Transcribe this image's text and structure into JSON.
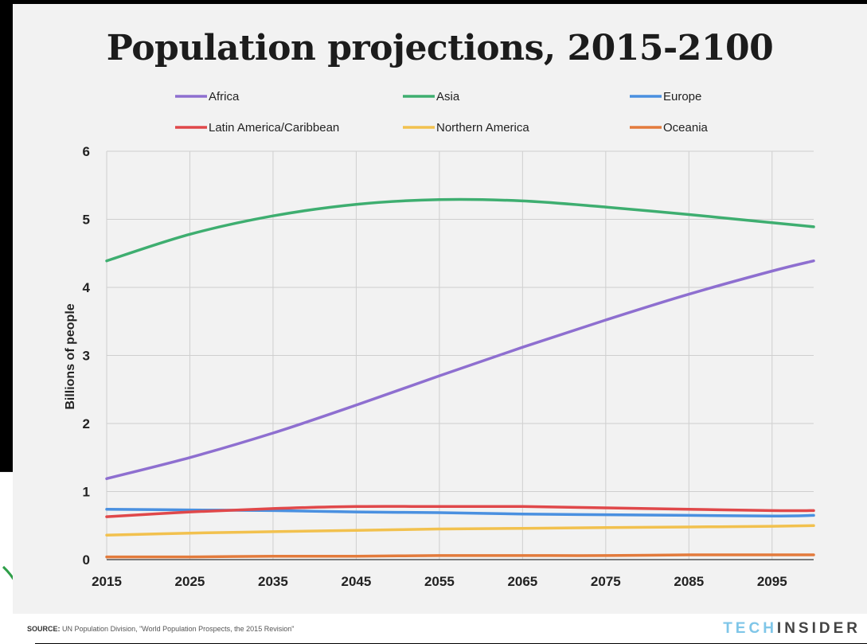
{
  "chart_data": {
    "type": "line",
    "title": "Population projections, 2015-2100",
    "xlabel": "",
    "ylabel": "Billions of people",
    "xlim": [
      2015,
      2100
    ],
    "ylim": [
      0,
      6
    ],
    "x_ticks": [
      2015,
      2025,
      2035,
      2045,
      2055,
      2065,
      2075,
      2085,
      2095
    ],
    "y_ticks": [
      0,
      1,
      2,
      3,
      4,
      5,
      6
    ],
    "grid": true,
    "legend_position": "top",
    "x": [
      2015,
      2025,
      2035,
      2045,
      2055,
      2065,
      2075,
      2085,
      2095,
      2100
    ],
    "series": [
      {
        "name": "Africa",
        "color": "#8e6fd0",
        "values": [
          1.19,
          1.5,
          1.86,
          2.27,
          2.7,
          3.12,
          3.52,
          3.9,
          4.24,
          4.39
        ]
      },
      {
        "name": "Asia",
        "color": "#3eae70",
        "values": [
          4.39,
          4.78,
          5.05,
          5.22,
          5.29,
          5.27,
          5.18,
          5.07,
          4.95,
          4.89
        ]
      },
      {
        "name": "Europe",
        "color": "#4a90e0",
        "values": [
          0.74,
          0.73,
          0.72,
          0.7,
          0.69,
          0.67,
          0.66,
          0.65,
          0.64,
          0.65
        ]
      },
      {
        "name": "Latin America/Caribbean",
        "color": "#e0484a",
        "values": [
          0.63,
          0.7,
          0.75,
          0.78,
          0.78,
          0.78,
          0.76,
          0.74,
          0.72,
          0.72
        ]
      },
      {
        "name": "Northern America",
        "color": "#f2c14e",
        "values": [
          0.36,
          0.39,
          0.41,
          0.43,
          0.45,
          0.46,
          0.47,
          0.48,
          0.49,
          0.5
        ]
      },
      {
        "name": "Oceania",
        "color": "#e37b3c",
        "values": [
          0.04,
          0.04,
          0.05,
          0.05,
          0.06,
          0.06,
          0.06,
          0.07,
          0.07,
          0.07
        ]
      }
    ]
  },
  "source": {
    "prefix": "SOURCE:",
    "text": "UN Population Division, \"World Population Prospects, the 2015 Revision\""
  },
  "brand": {
    "part1": "TECH",
    "part2": "INSIDER"
  }
}
